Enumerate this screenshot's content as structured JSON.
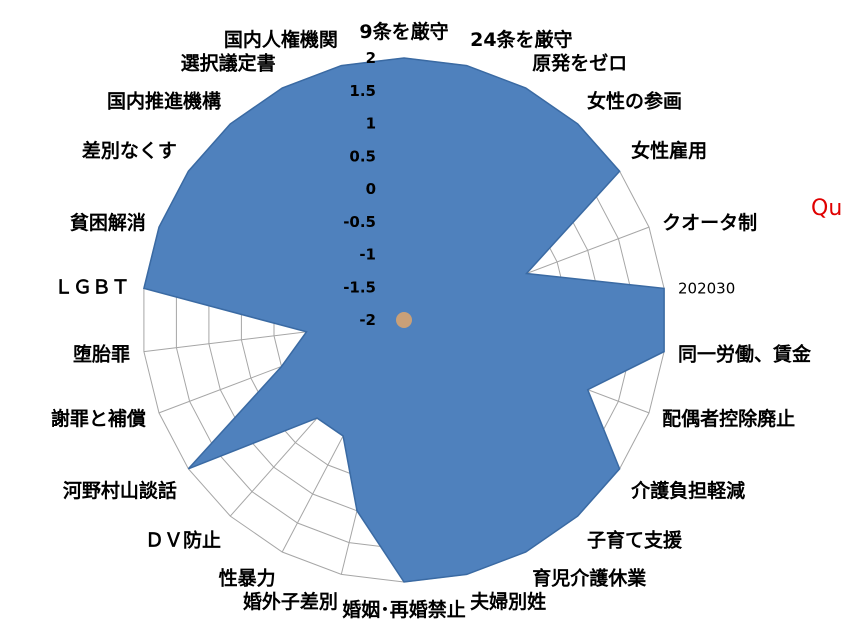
{
  "chart_data": {
    "type": "radar",
    "title": "",
    "categories": [
      "9条を厳守",
      "24条を厳守",
      "原発をゼロ",
      "女性の参画",
      "女性雇用",
      "クオータ制",
      "202030",
      "同一労働、賃金",
      "配偶者控除廃止",
      "介護負担軽減",
      "子育て支援",
      "育児介護休業",
      "夫婦別姓",
      "婚姻･再婚禁止",
      "婚外子差別",
      "性暴力",
      "ＤＶ防止",
      "河野村山談話",
      "謝罪と補償",
      "堕胎罪",
      "ＬＧＢＴ",
      "貧困解消",
      "差別なくす",
      "国内推進機構",
      "選択議定書",
      "国内人権機関"
    ],
    "series": [
      {
        "values": [
          2,
          2,
          2,
          2,
          2,
          0,
          2,
          2,
          1,
          2,
          2,
          2,
          2,
          2,
          1,
          0,
          0,
          2,
          0,
          -0.5,
          2,
          2,
          2,
          2,
          2,
          2
        ]
      }
    ],
    "r_ticks": [
      "2",
      "1.5",
      "1",
      "0.5",
      "0",
      "-0.5",
      "-1",
      "-1.5",
      "-2"
    ],
    "rlim": [
      -2,
      2
    ],
    "fill_color": "#4f81bd",
    "line_color": "#3a6aa3",
    "grid_color": "#a6a6a6",
    "center_color": "#c9a078",
    "legend": "none",
    "overflow_text": "Qu"
  }
}
